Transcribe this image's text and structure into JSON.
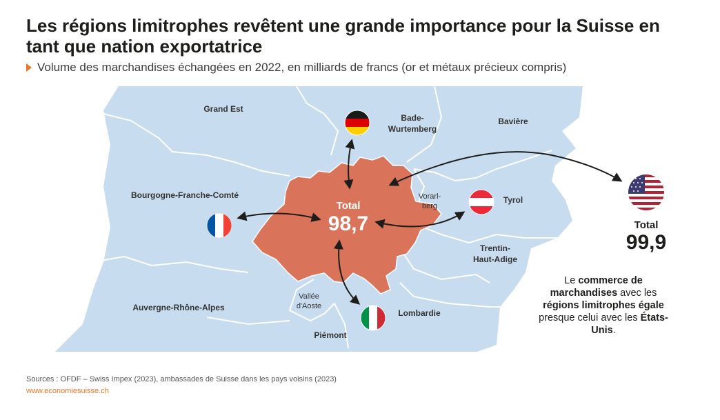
{
  "title": "Les régions limitrophes revêtent une grande importance pour la Suisse en tant que nation exportatrice",
  "subtitle": "Volume des marchandises échangées en 2022, en milliards de francs (or et métaux précieux compris)",
  "map": {
    "regions": [
      {
        "id": "grand-est",
        "label": "Grand Est"
      },
      {
        "id": "bade-wurtemberg",
        "label_lines": [
          "Bade-",
          "Wurtemberg"
        ]
      },
      {
        "id": "baviere",
        "label": "Bavière"
      },
      {
        "id": "bourgogne",
        "label": "Bourgogne-Franche-Comté"
      },
      {
        "id": "vorarlberg",
        "label_lines": [
          "Vorarl-",
          "berg"
        ]
      },
      {
        "id": "tyrol",
        "label": "Tyrol"
      },
      {
        "id": "trentin",
        "label_lines": [
          "Trentin-",
          "Haut-Adige"
        ]
      },
      {
        "id": "auvergne",
        "label": "Auvergne-Rhône-Alpes"
      },
      {
        "id": "vallee-aoste",
        "label_lines": [
          "Vallée",
          "d'Aoste"
        ]
      },
      {
        "id": "lombardie",
        "label": "Lombardie"
      },
      {
        "id": "piemont",
        "label": "Piémont"
      }
    ],
    "switzerland_total_label": "Total",
    "switzerland_total_value": "98,7",
    "usa_total_label": "Total",
    "usa_total_value": "99,9",
    "flags": [
      "germany",
      "france",
      "austria",
      "italy",
      "usa"
    ],
    "colors": {
      "switzerland": "#d9745a",
      "land": "#c8dcf0",
      "border": "#ffffff",
      "accent": "#e8772e"
    }
  },
  "note": {
    "p1": "Le ",
    "b1": "commerce de marchandises",
    "p2": " avec les ",
    "b2": "régions limitrophes égale",
    "p3": " presque celui avec les ",
    "b3": "États-Unis",
    "p4": "."
  },
  "sources": "Sources : OFDF – Swiss Impex (2023), ambassades de Suisse dans les pays voisins (2023)",
  "website": "www.economiesuisse.ch"
}
